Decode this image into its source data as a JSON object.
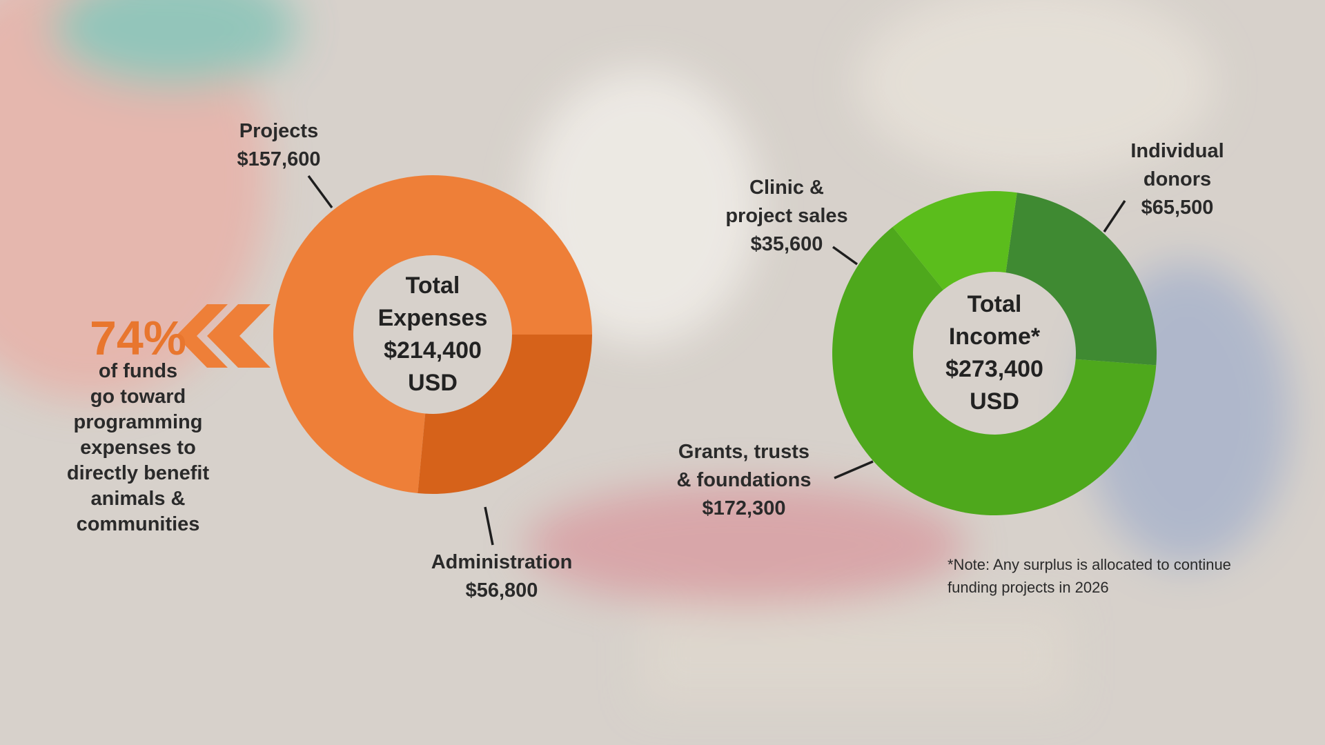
{
  "chart_data": [
    {
      "type": "donut",
      "center_title": "Total Expenses",
      "center_value": "$214,400 USD",
      "categories": [
        "Projects",
        "Administration"
      ],
      "values": [
        157600,
        56800
      ],
      "value_labels": [
        "$157,600",
        "$56,800"
      ],
      "colors": [
        "#ee7f38",
        "#d6621a"
      ],
      "annotation": {
        "value": 74,
        "label": "74%",
        "text_lines": [
          "of funds",
          "go toward",
          "programming",
          "expenses to",
          "directly benefit",
          "animals &",
          "communities"
        ],
        "color": "#e8762e"
      }
    },
    {
      "type": "donut",
      "center_title": "Total Income*",
      "center_value": "$273,400 USD",
      "categories": [
        "Individual donors",
        "Grants, trusts & foundations",
        "Clinic & project sales"
      ],
      "values": [
        65500,
        172300,
        35600
      ],
      "value_labels": [
        "$65,500",
        "$172,300",
        "$35,600"
      ],
      "colors": [
        "#3f8a32",
        "#4ea81c",
        "#5bbd1c"
      ],
      "note": "*Note: Any surplus is allocated to continue funding projects in 2026"
    }
  ]
}
